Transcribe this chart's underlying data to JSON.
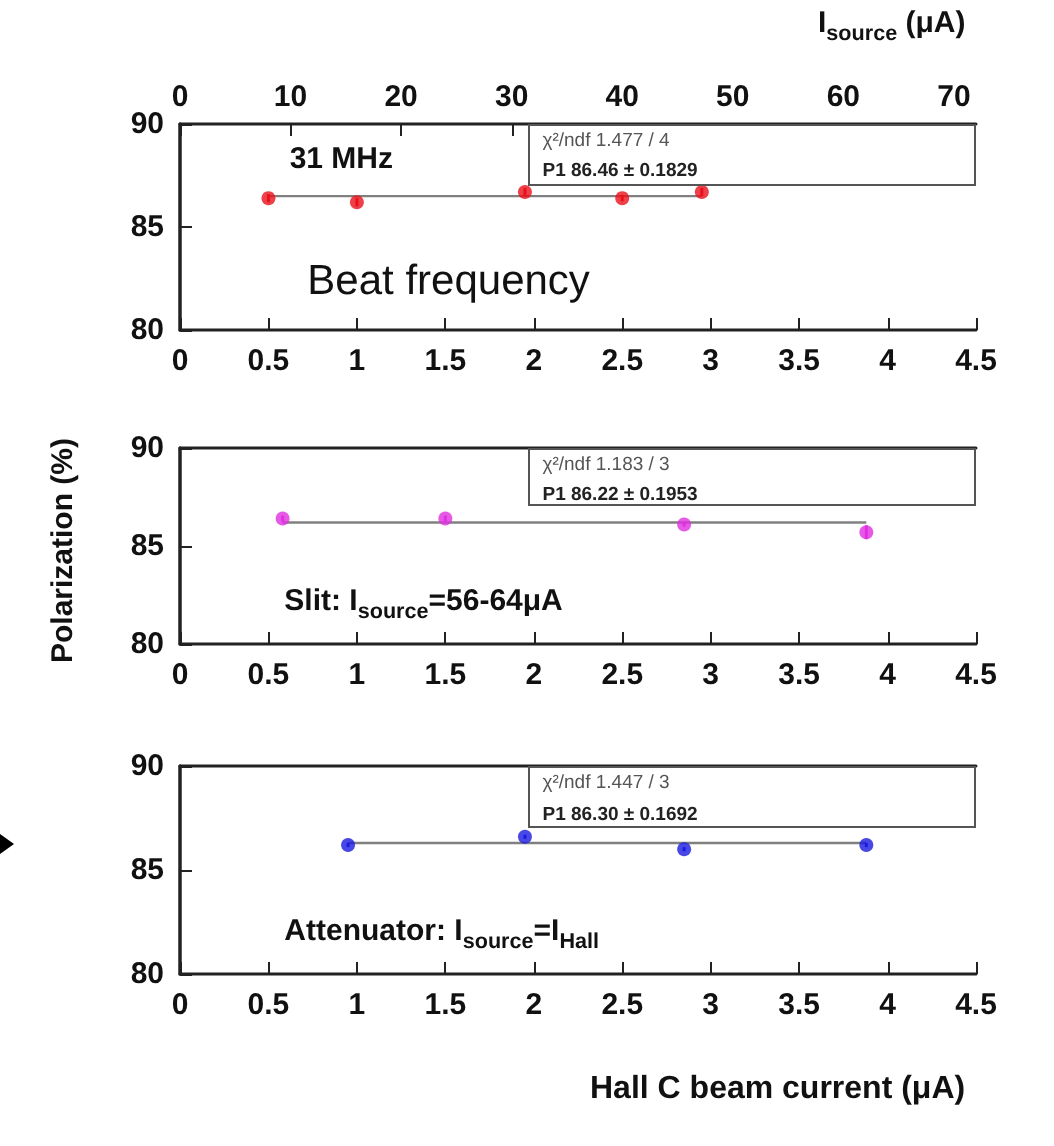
{
  "chart_data": [
    {
      "type": "scatter",
      "x2label": "I$_{source}$ (μA)",
      "x2lim": [
        0,
        72
      ],
      "x2ticks": [
        0,
        10,
        20,
        30,
        40,
        50,
        60,
        70
      ],
      "xlim": [
        0,
        4.5
      ],
      "xticks": [
        0,
        0.5,
        1,
        1.5,
        2,
        2.5,
        3,
        3.5,
        4,
        4.5
      ],
      "ylim": [
        80,
        90
      ],
      "yticks": [
        80,
        85,
        90
      ],
      "marker": "circle",
      "annotations": [
        "31 MHz",
        "Beat frequency",
        "χ²/ndf 1.477 / 4",
        "P1 86.46 ± 0.1829"
      ],
      "series": [
        {
          "color": "#e8101c",
          "x": [
            0.5,
            1,
            1.95,
            2.5,
            2.95
          ],
          "values": [
            86.4,
            86.2,
            86.7,
            86.4,
            86.7
          ],
          "errors": [
            0.2,
            0.2,
            0.2,
            0.15,
            0.2
          ]
        },
        {
          "type": "line",
          "color": "#808080",
          "marker": "none",
          "x": [
            0.5,
            2.95
          ],
          "values": [
            86.5,
            86.5
          ]
        }
      ]
    },
    {
      "type": "scatter",
      "ylabel": "Polarization (%)",
      "xlim": [
        0,
        4.5
      ],
      "xticks": [
        0,
        0.5,
        1,
        1.5,
        2,
        2.5,
        3,
        3.5,
        4,
        4.5
      ],
      "ylim": [
        80,
        90
      ],
      "yticks": [
        80,
        85,
        90
      ],
      "marker": "circle",
      "annotations": [
        "Slit: I$_{source}$=56-64μA",
        "χ²/ndf 1.183 / 3",
        "P1 86.22 ± 0.1953"
      ],
      "series": [
        {
          "color": "#e030e0",
          "x": [
            0.58,
            1.5,
            2.85,
            3.88
          ],
          "values": [
            86.4,
            86.4,
            86.1,
            85.7
          ],
          "errors": [
            0.15,
            0.15,
            0.12,
            0.35
          ]
        },
        {
          "type": "line",
          "color": "#808080",
          "marker": "none",
          "x": [
            0.58,
            3.88
          ],
          "values": [
            86.2,
            86.2
          ]
        }
      ]
    },
    {
      "type": "scatter",
      "xlabel": "Hall C beam current (μA)",
      "xlim": [
        0,
        4.5
      ],
      "xticks": [
        0,
        0.5,
        1,
        1.5,
        2,
        2.5,
        3,
        3.5,
        4,
        4.5
      ],
      "ylim": [
        80,
        90
      ],
      "yticks": [
        80,
        85,
        90
      ],
      "marker": "circle",
      "annotations": [
        "Attenuator: I$_{source}$=I$_{Hall}$",
        "χ²/ndf 1.447 / 3",
        "P1 86.30 ± 0.1692"
      ],
      "series": [
        {
          "color": "#1a1ae0",
          "x": [
            0.95,
            1.95,
            2.85,
            3.88
          ],
          "values": [
            86.2,
            86.6,
            86.0,
            86.2
          ],
          "errors": [
            0.1,
            0.1,
            0.1,
            0.1
          ]
        },
        {
          "type": "line",
          "color": "#808080",
          "marker": "none",
          "x": [
            0.95,
            3.88
          ],
          "values": [
            86.3,
            86.3
          ]
        }
      ]
    }
  ]
}
